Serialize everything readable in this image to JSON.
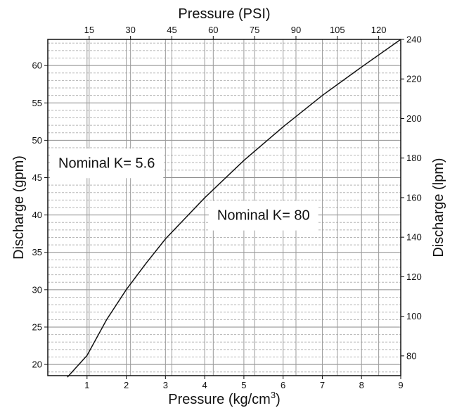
{
  "chart_data": {
    "type": "line",
    "title": "",
    "x_axis_bottom": {
      "label": "Pressure (kg/cm",
      "label_superscript": "3",
      "label_suffix": ")",
      "range": [
        0,
        9
      ],
      "ticks": [
        1,
        2,
        3,
        4,
        5,
        6,
        7,
        8,
        9
      ]
    },
    "x_axis_top": {
      "label": "Pressure (PSI)",
      "range": [
        0,
        128
      ],
      "ticks": [
        15,
        30,
        45,
        60,
        75,
        90,
        105,
        120
      ]
    },
    "y_axis_left": {
      "label": "Discharge (gpm)",
      "range": [
        18.5,
        63.5
      ],
      "ticks": [
        20,
        25,
        30,
        35,
        40,
        45,
        50,
        55,
        60
      ]
    },
    "y_axis_right": {
      "label": "Discharge (lpm)",
      "range": [
        70,
        240
      ],
      "ticks": [
        80,
        100,
        120,
        140,
        160,
        180,
        200,
        220,
        240
      ]
    },
    "grid": "on",
    "series": [
      {
        "x": [
          0.5,
          1.0,
          1.5,
          2.0,
          2.5,
          3.0,
          4.0,
          5.0,
          6.0,
          7.0,
          8.0,
          9.0
        ],
        "y": [
          18.3,
          21.2,
          26.0,
          30.0,
          33.5,
          36.8,
          42.3,
          47.3,
          51.8,
          56.0,
          59.8,
          63.5
        ]
      }
    ],
    "annotations": [
      {
        "text": "Nominal K= 5.6",
        "x": 1.5,
        "y": 47
      },
      {
        "text": "Nominal K= 80",
        "x": 5.5,
        "y": 40
      }
    ]
  }
}
